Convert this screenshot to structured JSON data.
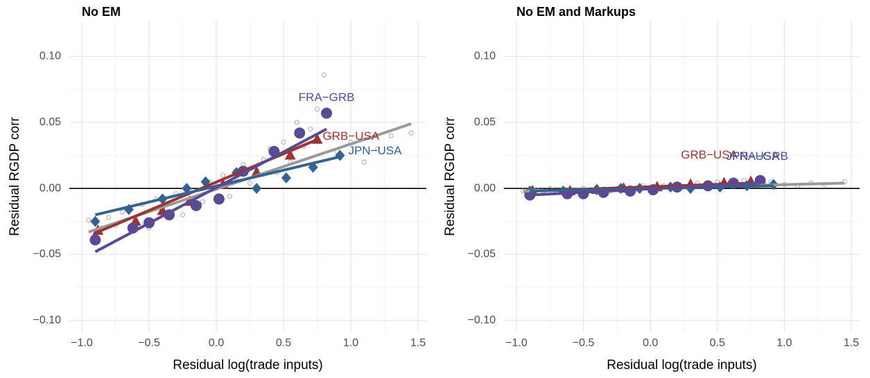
{
  "chart_data": [
    {
      "type": "scatter",
      "title": "No EM",
      "xlabel": "Residual log(trade inputs)",
      "ylabel": "Residual RGDP corr",
      "xlim": [
        -1.093,
        1.562
      ],
      "ylim": [
        -0.109,
        0.127
      ],
      "xticks": [
        {
          "value": -1,
          "label": "−1.0"
        },
        {
          "value": -0.5,
          "label": "−0.5"
        },
        {
          "value": 0,
          "label": "0.0"
        },
        {
          "value": 0.5,
          "label": "0.5"
        },
        {
          "value": 1,
          "label": "1.0"
        },
        {
          "value": 1.5,
          "label": "1.5"
        }
      ],
      "yticks": [
        {
          "value": -0.1,
          "label": "−0.10"
        },
        {
          "value": -0.05,
          "label": "−0.05"
        },
        {
          "value": 0,
          "label": "0.00"
        },
        0.05,
        {
          "value": 0.1,
          "label": "0.10"
        }
      ],
      "hline": 0,
      "grid": true,
      "series": [
        {
          "color": "#a8a8a8",
          "marker": "open-circle",
          "x": [
            -0.95,
            -0.9,
            -0.85,
            -0.8,
            -0.75,
            -0.7,
            -0.6,
            -0.55,
            -0.5,
            -0.45,
            -0.4,
            -0.3,
            -0.25,
            -0.2,
            -0.1,
            -0.05,
            0,
            0.05,
            0.1,
            0.15,
            0.2,
            0.25,
            0.3,
            0.35,
            0.4,
            0.45,
            0.5,
            0.55,
            0.6,
            0.65,
            0.7,
            0.75,
            0.8,
            0.85,
            0.9,
            1.0,
            1.1,
            1.2,
            1.3,
            1.45
          ],
          "values": [
            -0.024,
            -0.038,
            -0.03,
            -0.022,
            -0.028,
            -0.018,
            -0.025,
            -0.012,
            -0.03,
            -0.008,
            -0.015,
            -0.004,
            -0.02,
            -0.002,
            -0.01,
            0.005,
            0.002,
            0.01,
            -0.006,
            0.008,
            0.018,
            0.004,
            0.014,
            0.022,
            0.03,
            0.012,
            0.035,
            0.02,
            0.05,
            0.032,
            0.045,
            0.06,
            0.086,
            0.04,
            0.028,
            0.035,
            0.02,
            0.03,
            0.04,
            0.042
          ],
          "fit_x": [
            -0.95,
            1.45
          ],
          "fit_y": [
            -0.033,
            0.049
          ]
        },
        {
          "name": "GRB−USA",
          "color": "#9b3434",
          "marker": "triangle",
          "x": [
            -0.88,
            -0.6,
            -0.4,
            -0.2,
            0.05,
            0.3,
            0.55,
            0.75
          ],
          "values": [
            -0.032,
            -0.025,
            -0.017,
            -0.01,
            0.003,
            0.012,
            0.025,
            0.037
          ],
          "fit_x": [
            -0.88,
            0.75
          ],
          "fit_y": [
            -0.033,
            0.037
          ]
        },
        {
          "name": "JPN−USA",
          "color": "#35628f",
          "marker": "diamond",
          "x": [
            -0.9,
            -0.65,
            -0.4,
            -0.22,
            -0.08,
            0.15,
            0.3,
            0.52,
            0.72,
            0.92
          ],
          "values": [
            -0.025,
            -0.016,
            -0.008,
            0,
            0.005,
            0.012,
            0,
            0.008,
            0.016,
            0.025
          ],
          "fit_x": [
            -0.9,
            0.92
          ],
          "fit_y": [
            -0.02,
            0.024
          ]
        },
        {
          "name": "FRA−GRB",
          "color": "#5a4a94",
          "marker": "circle",
          "x": [
            -0.9,
            -0.62,
            -0.5,
            -0.35,
            -0.15,
            0.02,
            0.2,
            0.43,
            0.62,
            0.82
          ],
          "values": [
            -0.039,
            -0.03,
            -0.026,
            -0.02,
            -0.013,
            -0.008,
            0.013,
            0.028,
            0.042,
            0.057
          ],
          "fit_x": [
            -0.9,
            0.82
          ],
          "fit_y": [
            -0.048,
            0.045
          ]
        }
      ]
    },
    {
      "type": "scatter",
      "title": "No EM and Markups",
      "xlabel": "Residual log(trade inputs)",
      "ylabel": "Residual RGDP corr",
      "xlim": [
        -1.093,
        1.562
      ],
      "ylim": [
        -0.109,
        0.127
      ],
      "xticks": [
        {
          "value": -1,
          "label": "−1.0"
        },
        {
          "value": -0.5,
          "label": "−0.5"
        },
        {
          "value": 0,
          "label": "0.0"
        },
        {
          "value": 0.5,
          "label": "0.5"
        },
        {
          "value": 1,
          "label": "1.0"
        },
        {
          "value": 1.5,
          "label": "1.5"
        }
      ],
      "yticks": [
        {
          "value": -0.1,
          "label": "−0.10"
        },
        {
          "value": -0.05,
          "label": "−0.05"
        },
        {
          "value": 0,
          "label": "0.00"
        },
        0.05,
        {
          "value": 0.1,
          "label": "0.10"
        }
      ],
      "hline": 0,
      "grid": true,
      "series": [
        {
          "color": "#a8a8a8",
          "marker": "open-circle",
          "x": [
            -0.95,
            -0.9,
            -0.85,
            -0.8,
            -0.75,
            -0.7,
            -0.6,
            -0.55,
            -0.5,
            -0.45,
            -0.4,
            -0.3,
            -0.25,
            -0.2,
            -0.1,
            -0.05,
            0,
            0.05,
            0.1,
            0.15,
            0.2,
            0.25,
            0.3,
            0.35,
            0.4,
            0.45,
            0.5,
            0.55,
            0.6,
            0.65,
            0.7,
            0.75,
            0.8,
            0.85,
            0.9,
            1.0,
            1.1,
            1.2,
            1.3,
            1.45
          ],
          "values": [
            -0.002,
            -0.003,
            -0.001,
            -0.002,
            0,
            -0.003,
            -0.001,
            -0.002,
            0,
            -0.001,
            0.001,
            -0.002,
            0,
            0.001,
            -0.001,
            0.002,
            0,
            0.001,
            0.002,
            0,
            0.003,
            0.001,
            0.002,
            0.004,
            0.002,
            0.003,
            0.005,
            0.002,
            0.004,
            0.003,
            0.006,
            0.002,
            0.004,
            0.003,
            0.005,
            0.003,
            0.002,
            0.004,
            0.003,
            0.005
          ],
          "fit_x": [
            -0.95,
            1.45
          ],
          "fit_y": [
            -0.002,
            0.004
          ]
        },
        {
          "name": "GRB−USA",
          "color": "#9b3434",
          "marker": "triangle",
          "x": [
            -0.88,
            -0.6,
            -0.4,
            -0.2,
            0.05,
            0.3,
            0.55,
            0.75
          ],
          "values": [
            -0.002,
            -0.002,
            -0.001,
            0,
            0.001,
            0.003,
            0.004,
            0.005
          ],
          "fit_x": [
            -0.88,
            0.75
          ],
          "fit_y": [
            -0.002,
            0.004
          ]
        },
        {
          "name": "JPN−USA",
          "color": "#35628f",
          "marker": "diamond",
          "x": [
            -0.9,
            -0.65,
            -0.4,
            -0.22,
            -0.08,
            0.15,
            0.3,
            0.52,
            0.72,
            0.92
          ],
          "values": [
            -0.002,
            -0.002,
            -0.001,
            0,
            0,
            0.001,
            0,
            0.001,
            0.002,
            0.003
          ],
          "fit_x": [
            -0.9,
            0.92
          ],
          "fit_y": [
            -0.002,
            0.002
          ]
        },
        {
          "name": "FRA−GRB",
          "color": "#5a4a94",
          "marker": "circle",
          "x": [
            -0.9,
            -0.62,
            -0.5,
            -0.35,
            -0.15,
            0.02,
            0.2,
            0.43,
            0.62,
            0.82
          ],
          "values": [
            -0.005,
            -0.004,
            -0.004,
            -0.003,
            -0.002,
            -0.001,
            0.001,
            0.002,
            0.004,
            0.006
          ],
          "fit_x": [
            -0.9,
            0.82
          ],
          "fit_y": [
            -0.005,
            0.004
          ]
        }
      ]
    }
  ]
}
